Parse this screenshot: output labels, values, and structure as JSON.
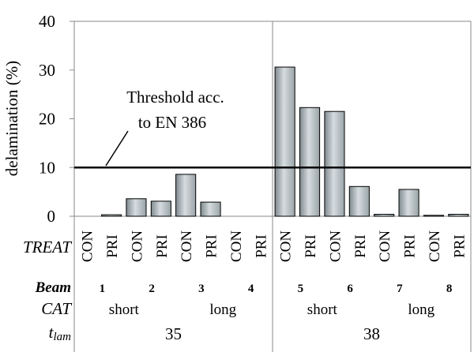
{
  "chart_data": {
    "type": "bar",
    "ylabel": "delamination (%)",
    "ylim": [
      0,
      40
    ],
    "yticks": [
      "0",
      "10",
      "20",
      "30",
      "40"
    ],
    "threshold": {
      "value": 10,
      "label_line1": "Threshold acc.",
      "label_line2": "to EN 386"
    },
    "row_labels": {
      "treat": "TREAT",
      "beam": "Beam",
      "cat": "CAT",
      "tlam_main": "t",
      "tlam_sub": "lam"
    },
    "categories": [
      "CON",
      "PRI",
      "CON",
      "PRI",
      "CON",
      "PRI",
      "CON",
      "PRI",
      "CON",
      "PRI",
      "CON",
      "PRI",
      "CON",
      "PRI",
      "CON",
      "PRI"
    ],
    "values": [
      0,
      0.3,
      3.6,
      3.1,
      8.6,
      2.9,
      0,
      0,
      30.6,
      22.3,
      21.5,
      6.1,
      0.4,
      5.5,
      0.2,
      0.4
    ],
    "beams": [
      "1",
      "2",
      "3",
      "4",
      "5",
      "6",
      "7",
      "8"
    ],
    "cats": [
      "short",
      "long",
      "short",
      "long"
    ],
    "tlam": [
      "35",
      "38"
    ]
  }
}
